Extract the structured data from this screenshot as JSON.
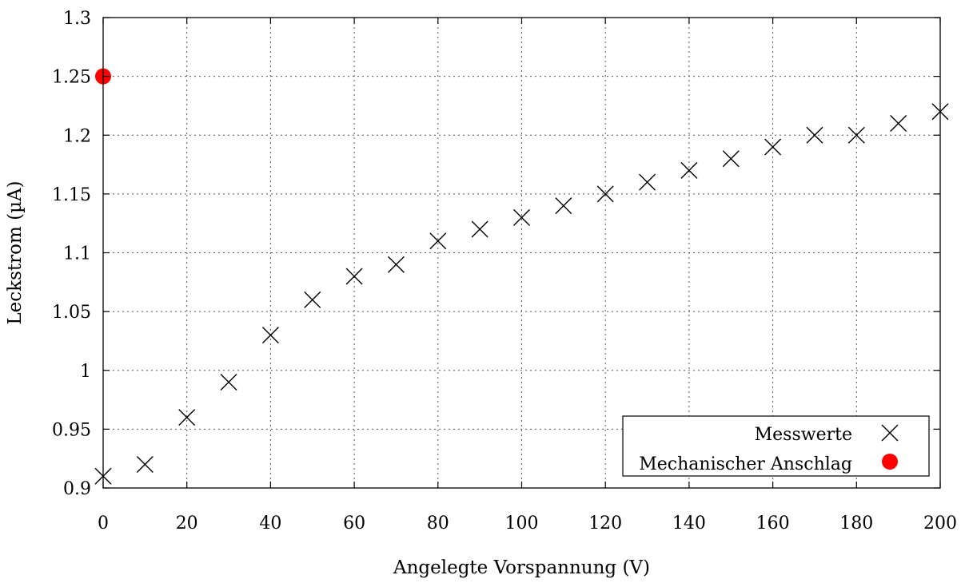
{
  "chart_data": {
    "type": "scatter",
    "xlabel": "Angelegte Vorspannung (V)",
    "ylabel": "Leckstrom (µA)",
    "xlim": [
      0,
      200
    ],
    "ylim": [
      0.9,
      1.3
    ],
    "xticks": [
      0,
      20,
      40,
      60,
      80,
      100,
      120,
      140,
      160,
      180,
      200
    ],
    "xtick_labels": [
      "0",
      "20",
      "40",
      "60",
      "80",
      "100",
      "120",
      "140",
      "160",
      "180",
      "200"
    ],
    "yticks": [
      0.9,
      0.95,
      1.0,
      1.05,
      1.1,
      1.15,
      1.2,
      1.25,
      1.3
    ],
    "ytick_labels": [
      "0.9",
      "0.95",
      "1",
      "1.05",
      "1.1",
      "1.15",
      "1.2",
      "1.25",
      "1.3"
    ],
    "grid": true,
    "legend_position": "bottom-right",
    "series": [
      {
        "name": "Messwerte",
        "marker": "cross",
        "color": "#000000",
        "x": [
          0,
          10,
          20,
          30,
          40,
          50,
          60,
          70,
          80,
          90,
          100,
          110,
          120,
          130,
          140,
          150,
          160,
          170,
          180,
          190,
          200
        ],
        "y": [
          0.91,
          0.92,
          0.96,
          0.99,
          1.03,
          1.06,
          1.08,
          1.09,
          1.11,
          1.12,
          1.13,
          1.14,
          1.15,
          1.16,
          1.17,
          1.18,
          1.19,
          1.2,
          1.2,
          1.21,
          1.22
        ]
      },
      {
        "name": "Mechanischer Anschlag",
        "marker": "circle",
        "color": "#ff0000",
        "x": [
          0
        ],
        "y": [
          1.25
        ]
      }
    ]
  }
}
